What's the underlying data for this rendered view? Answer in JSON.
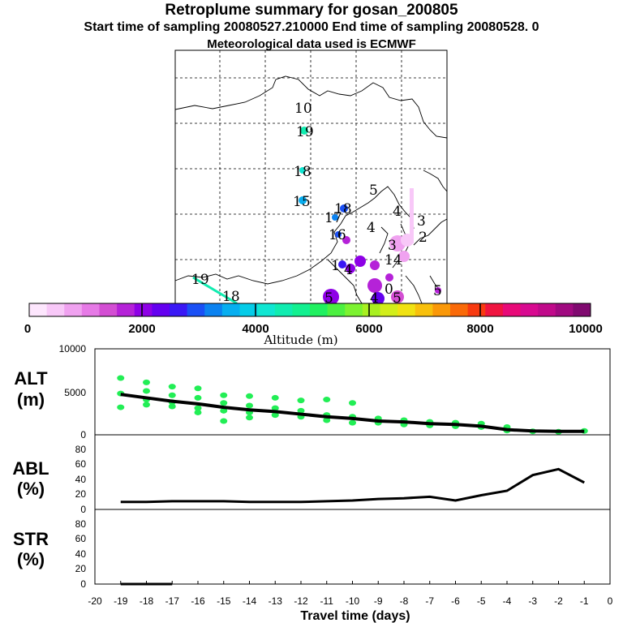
{
  "header": {
    "title": "Retroplume summary for gosan_200805",
    "subtitle_line1": "Start time of sampling 20080527.210000     End time of sampling 20080528.     0",
    "subtitle_line2": "Meteorological data used is ECMWF"
  },
  "colors": {
    "plume_green": "#22ee55",
    "line_black": "#000000"
  },
  "map": {
    "labels": [
      "10",
      "19",
      "18",
      "15",
      "18",
      "17",
      "16",
      "5",
      "4",
      "4",
      "3",
      "2",
      "1",
      "14",
      "4",
      "0",
      "5",
      "5",
      "19",
      "18",
      "5",
      "4",
      "3"
    ]
  },
  "colorbar": {
    "title": "Altitude (m)",
    "ticks": [
      "0",
      "2000",
      "4000",
      "6000",
      "8000",
      "10000"
    ],
    "colors": [
      "#fde6fd",
      "#f8c8f8",
      "#f0a2f0",
      "#e67ae6",
      "#d34ed3",
      "#b522d8",
      "#8e00e6",
      "#6400f0",
      "#3a18f5",
      "#1a50f5",
      "#0b82f0",
      "#07aef0",
      "#05cce8",
      "#10e6d2",
      "#10ecb0",
      "#12f090",
      "#20f060",
      "#4cf040",
      "#7cf230",
      "#a8f020",
      "#d2ee1a",
      "#f0e212",
      "#f8c00c",
      "#fa9808",
      "#fa6a08",
      "#f83a10",
      "#f01440",
      "#e80a78",
      "#d80a90",
      "#c00a8a",
      "#a00a80",
      "#800a70"
    ]
  },
  "chart_data": [
    {
      "type": "scatter",
      "panel": "ALT",
      "ylabel_line1": "ALT",
      "ylabel_line2": "(m)",
      "ylim": [
        0,
        10000
      ],
      "yticks": [
        "10000",
        "5000",
        "0"
      ],
      "xlim": [
        -20,
        0
      ],
      "mean_line": {
        "x": [
          -19,
          -18,
          -17,
          -16,
          -15,
          -14,
          -13,
          -12,
          -11,
          -10,
          -9,
          -8,
          -7,
          -6,
          -5,
          -4,
          -3,
          -2,
          -1
        ],
        "y": [
          4700,
          4300,
          3900,
          3600,
          3200,
          2900,
          2700,
          2400,
          2100,
          1900,
          1600,
          1500,
          1300,
          1200,
          1000,
          600,
          450,
          400,
          400
        ]
      },
      "plume_points": [
        {
          "x": -19,
          "y": 6600
        },
        {
          "x": -19,
          "y": 4800
        },
        {
          "x": -19,
          "y": 3200
        },
        {
          "x": -18,
          "y": 6100
        },
        {
          "x": -18,
          "y": 5100
        },
        {
          "x": -18,
          "y": 4100
        },
        {
          "x": -18,
          "y": 3500
        },
        {
          "x": -17,
          "y": 5600
        },
        {
          "x": -17,
          "y": 4600
        },
        {
          "x": -17,
          "y": 3800
        },
        {
          "x": -17,
          "y": 3300
        },
        {
          "x": -16,
          "y": 5400
        },
        {
          "x": -16,
          "y": 4300
        },
        {
          "x": -16,
          "y": 3100
        },
        {
          "x": -16,
          "y": 2600
        },
        {
          "x": -15,
          "y": 4600
        },
        {
          "x": -15,
          "y": 3700
        },
        {
          "x": -15,
          "y": 2800
        },
        {
          "x": -15,
          "y": 1600
        },
        {
          "x": -14,
          "y": 4500
        },
        {
          "x": -14,
          "y": 3400
        },
        {
          "x": -14,
          "y": 2600
        },
        {
          "x": -14,
          "y": 2000
        },
        {
          "x": -13,
          "y": 4300
        },
        {
          "x": -13,
          "y": 3100
        },
        {
          "x": -13,
          "y": 2300
        },
        {
          "x": -12,
          "y": 4000
        },
        {
          "x": -12,
          "y": 2800
        },
        {
          "x": -12,
          "y": 2100
        },
        {
          "x": -11,
          "y": 4100
        },
        {
          "x": -11,
          "y": 2300
        },
        {
          "x": -11,
          "y": 1700
        },
        {
          "x": -10,
          "y": 3700
        },
        {
          "x": -10,
          "y": 2100
        },
        {
          "x": -10,
          "y": 1400
        },
        {
          "x": -9,
          "y": 1900
        },
        {
          "x": -9,
          "y": 1400
        },
        {
          "x": -8,
          "y": 1700
        },
        {
          "x": -8,
          "y": 1200
        },
        {
          "x": -7,
          "y": 1500
        },
        {
          "x": -7,
          "y": 1100
        },
        {
          "x": -6,
          "y": 1400
        },
        {
          "x": -6,
          "y": 1000
        },
        {
          "x": -5,
          "y": 1300
        },
        {
          "x": -5,
          "y": 900
        },
        {
          "x": -4,
          "y": 900
        },
        {
          "x": -4,
          "y": 500
        },
        {
          "x": -3,
          "y": 400
        },
        {
          "x": -2,
          "y": 350
        },
        {
          "x": -1,
          "y": 450
        }
      ]
    },
    {
      "type": "line",
      "panel": "ABL",
      "ylabel_line1": "ABL",
      "ylabel_line2": "(%)",
      "ylim": [
        0,
        100
      ],
      "yticks": [
        "80",
        "60",
        "40",
        "20",
        "0"
      ],
      "x": [
        -19,
        -18,
        -17,
        -16,
        -15,
        -14,
        -13,
        -12,
        -11,
        -10,
        -9,
        -8,
        -7,
        -6,
        -5,
        -4,
        -3,
        -2,
        -1
      ],
      "y": [
        10,
        10,
        11,
        11,
        11,
        10,
        10,
        10,
        11,
        12,
        14,
        15,
        17,
        12,
        19,
        25,
        46,
        54,
        36
      ]
    },
    {
      "type": "line",
      "panel": "STR",
      "ylabel_line1": "STR",
      "ylabel_line2": "(%)",
      "ylim": [
        0,
        100
      ],
      "yticks": [
        "80",
        "60",
        "40",
        "20",
        "0"
      ],
      "x": [
        -19,
        -18,
        -17
      ],
      "y": [
        0,
        0,
        0
      ]
    },
    {
      "type": "axis",
      "xlabel": "Travel time (days)",
      "xticks": [
        "-20",
        "-19",
        "-18",
        "-17",
        "-16",
        "-15",
        "-14",
        "-13",
        "-12",
        "-11",
        "-10",
        "-9",
        "-8",
        "-7",
        "-6",
        "-5",
        "-4",
        "-3",
        "-2",
        "-1",
        "0"
      ]
    }
  ]
}
